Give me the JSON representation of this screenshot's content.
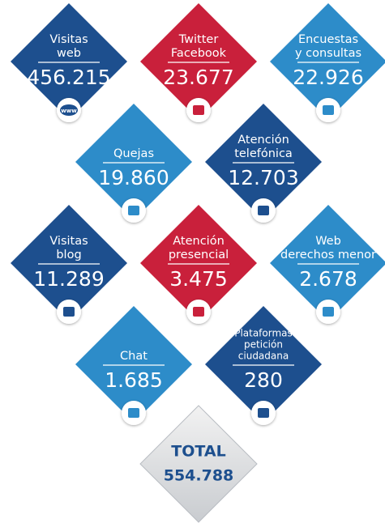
{
  "items": [
    {
      "label": [
        "Visitas",
        "web"
      ],
      "value": "456.215",
      "color": "#1d4f8e",
      "icon": "www"
    },
    {
      "label": [
        "Twitter",
        "Facebook"
      ],
      "value": "23.677",
      "color": "#c9203b"
    },
    {
      "label": [
        "Encuestas",
        "y consultas"
      ],
      "value": "22.926",
      "color": "#2d8cc9"
    },
    {
      "label": [
        "Quejas"
      ],
      "value": "19.860",
      "color": "#2d8cc9"
    },
    {
      "label": [
        "Atención",
        "telefónica"
      ],
      "value": "12.703",
      "color": "#1d4f8e"
    },
    {
      "label": [
        "Visitas",
        "blog"
      ],
      "value": "11.289",
      "color": "#1d4f8e"
    },
    {
      "label": [
        "Atención",
        "presencial"
      ],
      "value": "3.475",
      "color": "#c9203b"
    },
    {
      "label": [
        "Web",
        "derechos menor"
      ],
      "value": "2.678",
      "color": "#2d8cc9"
    },
    {
      "label": [
        "Chat"
      ],
      "value": "1.685",
      "color": "#2d8cc9"
    },
    {
      "label": [
        "Plataformas",
        "petición",
        "ciudadana"
      ],
      "value": "280",
      "color": "#1d4f8e"
    }
  ],
  "total": {
    "label": "TOTAL",
    "value": "554.788"
  }
}
